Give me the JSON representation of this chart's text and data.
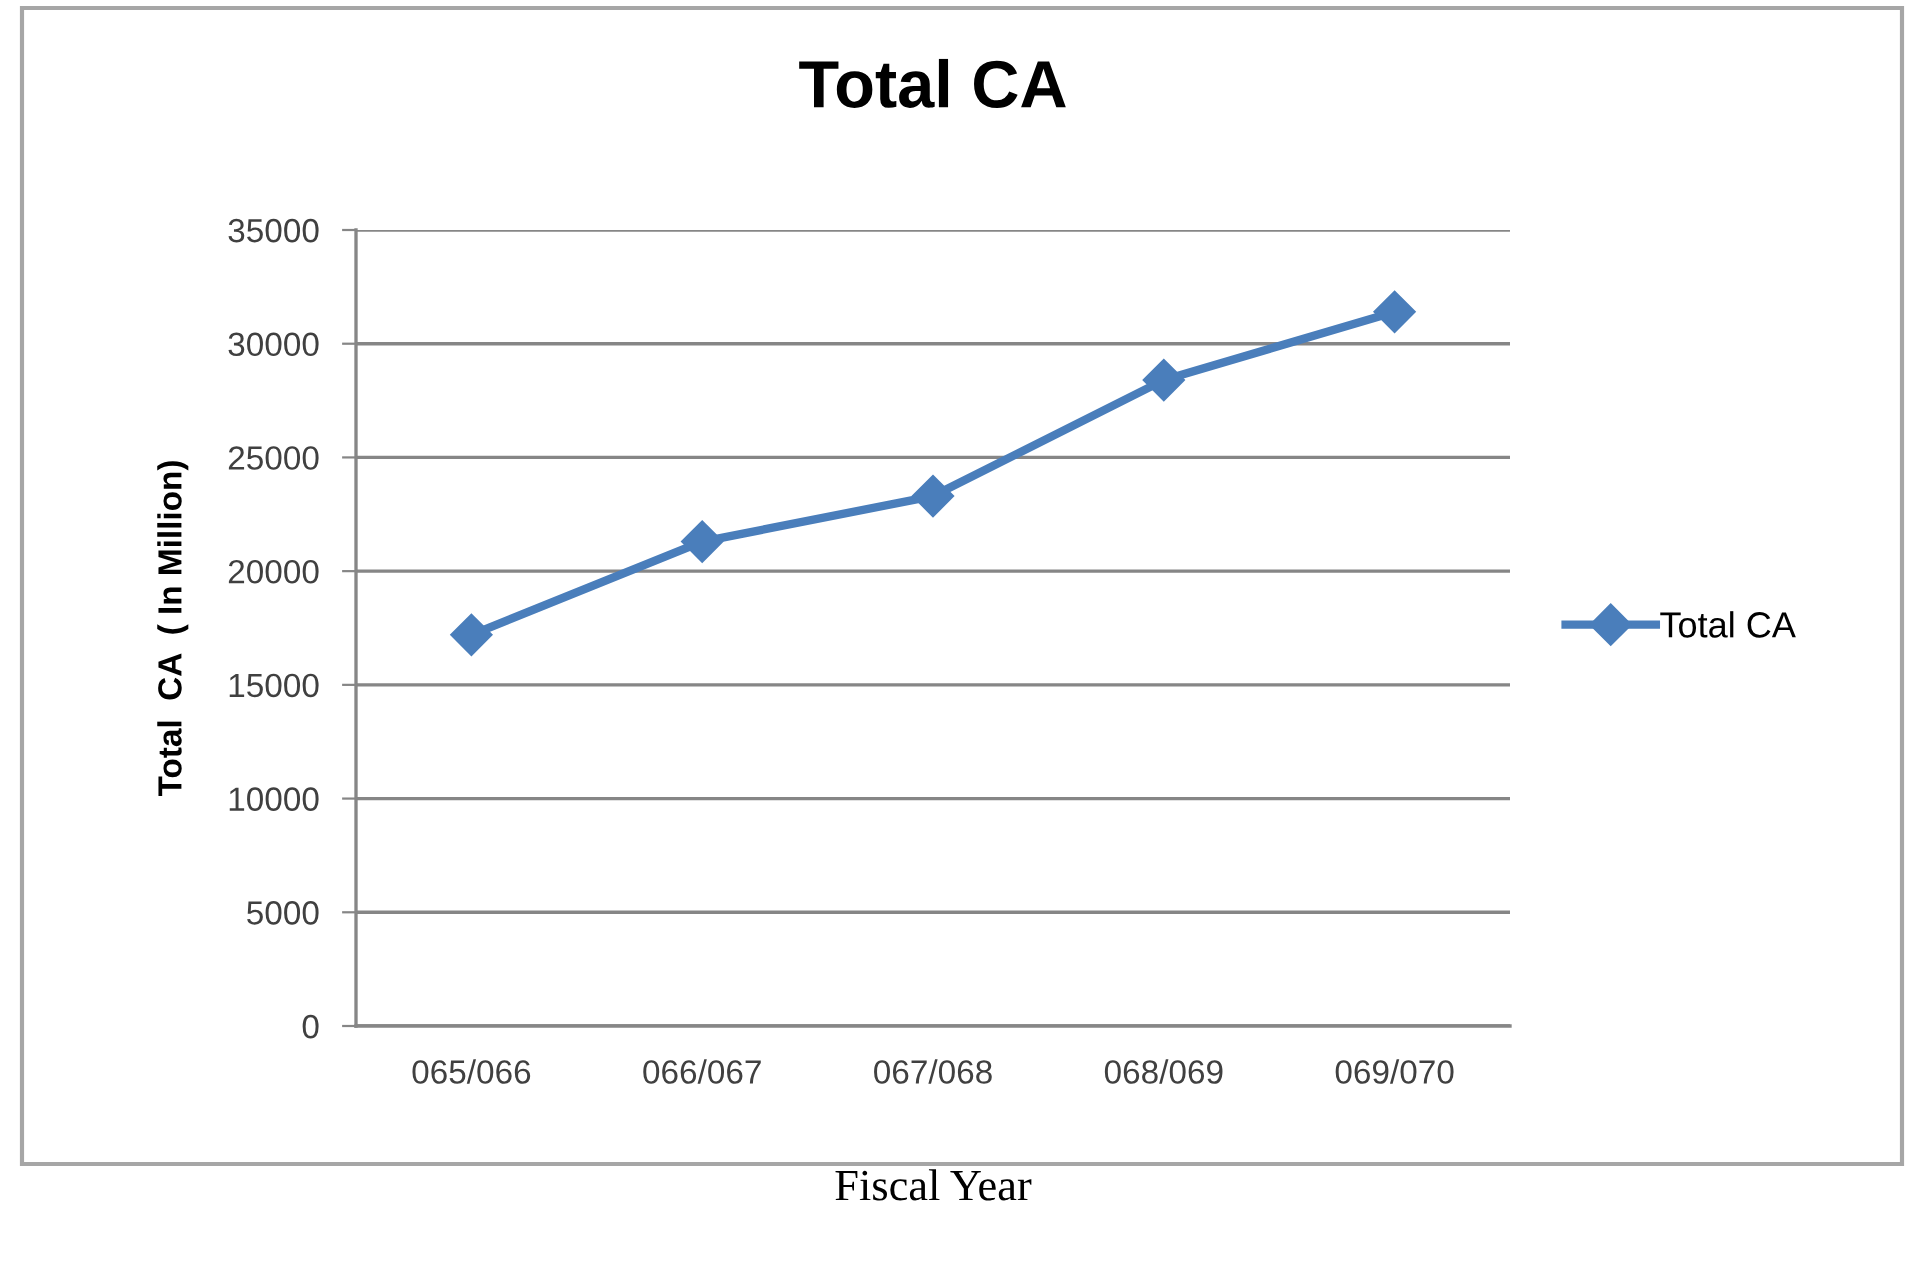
{
  "chart_data": {
    "type": "line",
    "title": "Total CA",
    "xlabel": "Fiscal Year",
    "ylabel": "Total  CA  ( In Million)",
    "categories": [
      "065/066",
      "066/067",
      "067/068",
      "068/069",
      "069/070"
    ],
    "series": [
      {
        "name": "Total CA",
        "color": "#4a7ebb",
        "values": [
          17200,
          21300,
          23300,
          28400,
          31400
        ]
      }
    ],
    "ylim": [
      0,
      35000
    ],
    "yticks": [
      0,
      5000,
      10000,
      15000,
      20000,
      25000,
      30000,
      35000
    ],
    "grid": "y",
    "legend": "right",
    "marker": "diamond",
    "line_style": "solid"
  }
}
